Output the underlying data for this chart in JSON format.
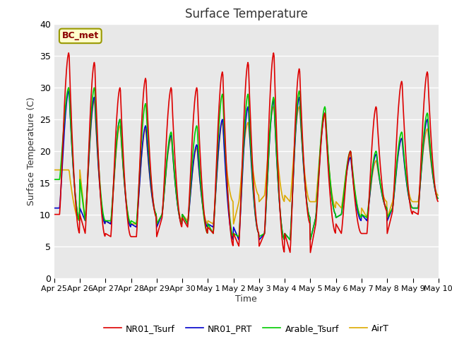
{
  "title": "Surface Temperature",
  "ylabel": "Surface Temperature (C)",
  "xlabel": "Time",
  "annotation": "BC_met",
  "ylim": [
    0,
    40
  ],
  "xlim": [
    0,
    15
  ],
  "bg_color": "#e8e8e8",
  "fig_bg_color": "#ffffff",
  "grid_color": "#ffffff",
  "series": {
    "NR01_Tsurf": {
      "color": "#dd0000",
      "lw": 1.2
    },
    "NR01_PRT": {
      "color": "#0000cc",
      "lw": 1.2
    },
    "Arable_Tsurf": {
      "color": "#00cc00",
      "lw": 1.2
    },
    "AirT": {
      "color": "#ddaa00",
      "lw": 1.2
    }
  },
  "x_tick_labels": [
    "Apr 25",
    "Apr 26",
    "Apr 27",
    "Apr 28",
    "Apr 29",
    "Apr 30",
    "May 1",
    "May 2",
    "May 3",
    "May 4",
    "May 5",
    "May 6",
    "May 7",
    "May 8",
    "May 9",
    "May 10"
  ],
  "yticks": [
    0,
    5,
    10,
    15,
    20,
    25,
    30,
    35,
    40
  ],
  "nr01_peaks": [
    35.5,
    34,
    30,
    31.5,
    30,
    30,
    32.5,
    34,
    35.5,
    33,
    26,
    20,
    27,
    31,
    32.5,
    32
  ],
  "nr01_troughs": [
    10,
    7,
    6.5,
    6.5,
    9.5,
    8,
    7,
    5,
    7,
    4,
    8.5,
    7,
    7,
    10.5,
    10,
    12
  ],
  "prt_peaks": [
    29.5,
    28.5,
    25,
    24,
    22.5,
    21,
    25,
    27,
    28,
    28.5,
    26,
    19,
    19.5,
    22,
    25,
    25
  ],
  "prt_troughs": [
    11,
    9,
    8.5,
    8,
    10,
    8.5,
    8,
    6,
    7,
    6,
    9.5,
    10,
    9,
    11,
    11,
    12.5
  ],
  "arable_peaks": [
    30,
    30,
    25,
    27.5,
    23,
    24,
    29,
    29,
    28.5,
    29.5,
    27,
    20,
    20,
    23,
    26,
    26
  ],
  "arable_troughs": [
    15.5,
    9,
    9,
    8.5,
    10,
    8.5,
    7,
    6.5,
    7,
    6,
    9.5,
    10,
    9.5,
    11,
    11,
    12.5
  ],
  "airt_peaks": [
    17,
    28,
    24,
    23.5,
    22,
    20.5,
    24.5,
    24.5,
    27,
    27,
    25.5,
    19.5,
    18.5,
    22,
    23.5,
    24.5
  ],
  "airt_troughs": [
    17,
    9,
    8.5,
    8.5,
    10,
    9,
    8.5,
    12,
    13,
    12,
    12,
    11,
    9.5,
    12,
    12,
    13
  ]
}
